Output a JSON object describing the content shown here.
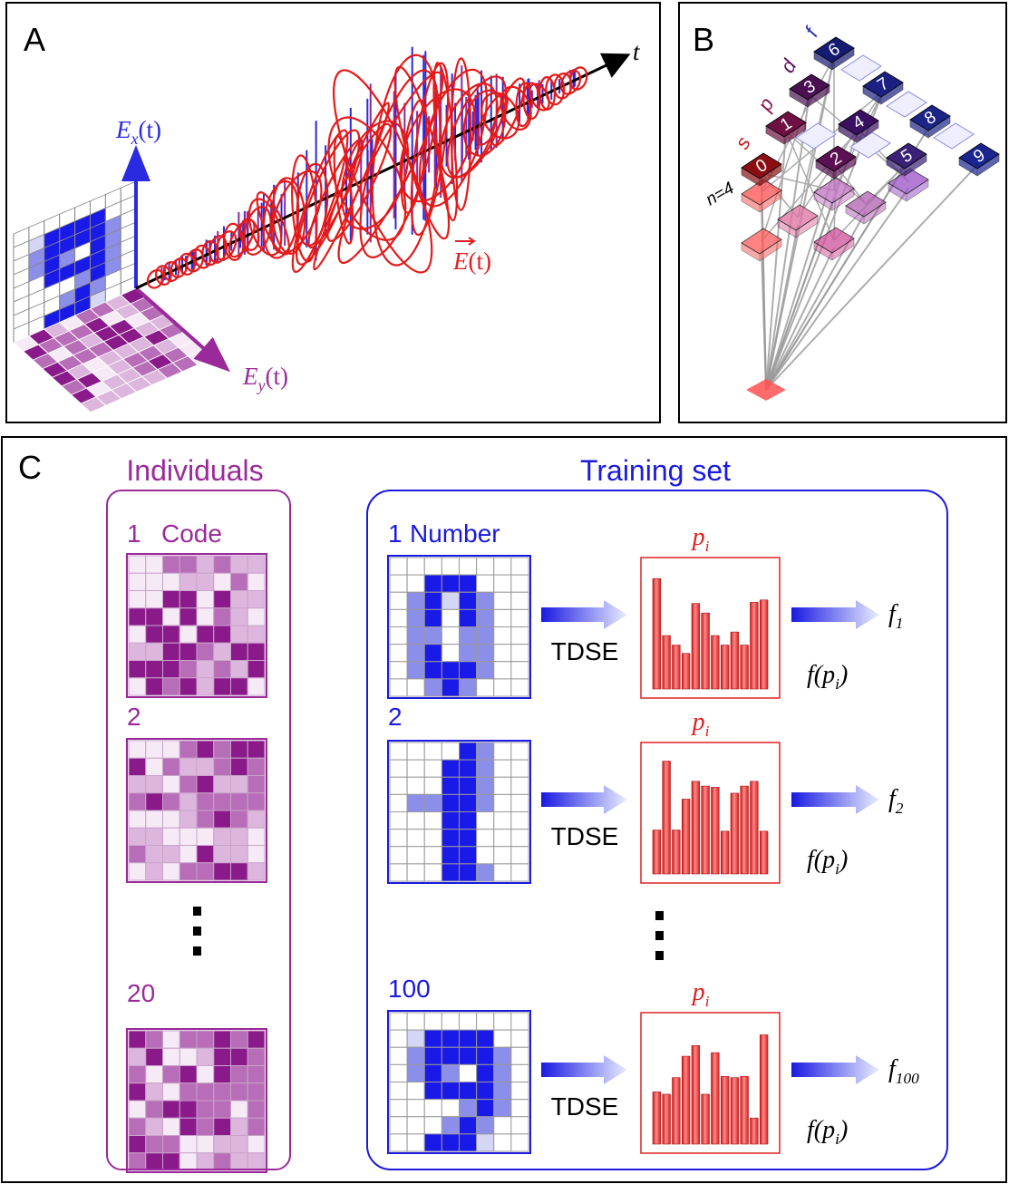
{
  "panel_a": {
    "letter": "A",
    "ex_label": {
      "base": "E",
      "sub": "x",
      "arg": "(t)"
    },
    "ey_label": {
      "base": "E",
      "sub": "y",
      "arg": "(t)"
    },
    "t_label": "t",
    "field_label": {
      "base": "E",
      "arg": "(t)"
    }
  },
  "panel_b": {
    "letter": "B",
    "shells": [
      "s",
      "p",
      "d",
      "f"
    ],
    "n_label": "n=4",
    "nodes": [
      "0",
      "1",
      "3",
      "6",
      "2",
      "4",
      "7",
      "5",
      "8",
      "9"
    ]
  },
  "panel_c": {
    "letter": "C",
    "individuals": {
      "title": "Individuals",
      "items": [
        {
          "index": "1",
          "label": "Code"
        },
        {
          "index": "2"
        },
        {
          "index": "20"
        }
      ]
    },
    "training": {
      "title": "Training set",
      "rows": [
        {
          "index": "1",
          "label": "Number",
          "method": "TDSE",
          "p": {
            "base": "p",
            "sub": "i"
          },
          "fp": {
            "pre": "f(p",
            "sub": "i",
            "post": ")"
          },
          "out": {
            "base": "f",
            "sub": "1"
          },
          "bars": [
            0.93,
            0.45,
            0.37,
            0.3,
            0.72,
            0.64,
            0.45,
            0.37,
            0.48,
            0.37,
            0.73,
            0.75
          ]
        },
        {
          "index": "2",
          "method": "TDSE",
          "p": {
            "base": "p",
            "sub": "i"
          },
          "fp": {
            "pre": "f(p",
            "sub": "i",
            "post": ")"
          },
          "out": {
            "base": "f",
            "sub": "2"
          },
          "bars": [
            0.37,
            0.95,
            0.37,
            0.63,
            0.78,
            0.74,
            0.73,
            0.36,
            0.68,
            0.74,
            0.78,
            0.36
          ]
        },
        {
          "index": "100",
          "method": "TDSE",
          "p": {
            "base": "p",
            "sub": "i"
          },
          "fp": {
            "pre": "f(p",
            "sub": "i",
            "post": ")"
          },
          "out": {
            "base": "f",
            "sub": "100"
          },
          "bars": [
            0.44,
            0.42,
            0.56,
            0.74,
            0.83,
            0.42,
            0.77,
            0.57,
            0.56,
            0.57,
            0.22,
            0.92
          ]
        }
      ]
    }
  }
}
